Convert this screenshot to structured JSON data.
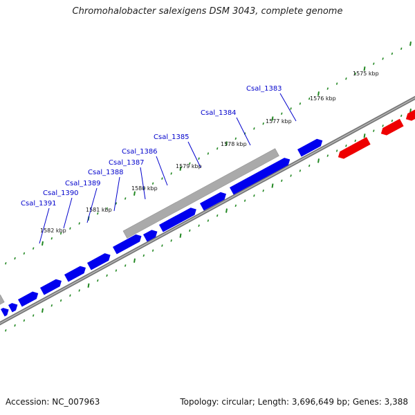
{
  "title": "Chromohalobacter salexigens DSM 3043, complete genome",
  "footer": {
    "accession": "Accession: NC_007963",
    "summary": "Topology: circular; Length: 3,696,649 bp; Genes: 3,388"
  },
  "colors": {
    "gene_forward": "#0000ee",
    "gene_reverse": "#ee0000",
    "gene_other": "#aaaaaa",
    "backbone": "#777777",
    "ticks": "#228822",
    "labels": "#0000cc"
  },
  "ruler": [
    {
      "label": "1575 kbp"
    },
    {
      "label": "1576 kbp"
    },
    {
      "label": "1577 kbp"
    },
    {
      "label": "1578 kbp"
    },
    {
      "label": "1579 kbp"
    },
    {
      "label": "1580 kbp"
    },
    {
      "label": "1581 kbp"
    },
    {
      "label": "1582 kbp"
    }
  ],
  "genes": [
    {
      "label": "Csal_1383"
    },
    {
      "label": "Csal_1384"
    },
    {
      "label": "Csal_1385"
    },
    {
      "label": "Csal_1386"
    },
    {
      "label": "Csal_1387"
    },
    {
      "label": "Csal_1388"
    },
    {
      "label": "Csal_1389"
    },
    {
      "label": "Csal_1390"
    },
    {
      "label": "Csal_1391"
    }
  ]
}
